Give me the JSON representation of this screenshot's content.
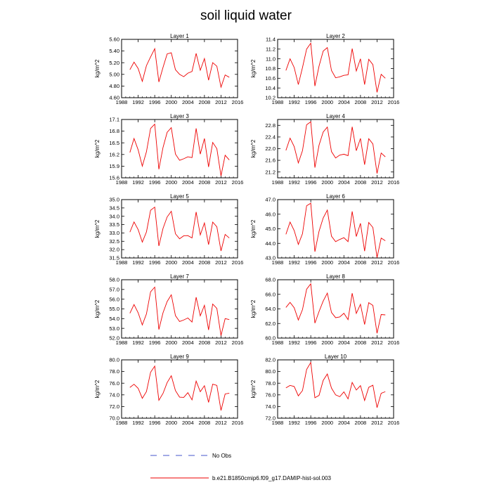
{
  "title": "soil liquid water",
  "legend": {
    "obs_label": "No Obs",
    "model_label": "b.e21.B1850cmip6.f09_g17.DAMIP-hist-sol.003",
    "model_color": "#ee0000",
    "obs_color": "#4455cc"
  },
  "chart_data": [
    {
      "type": "line",
      "title": "Layer 1",
      "ylabel": "kg/m^2",
      "xlim": [
        1988,
        2016
      ],
      "ylim": [
        4.6,
        5.6
      ],
      "xticks": [
        "1988",
        "1992",
        "1996",
        "2000",
        "2004",
        "2008",
        "2012",
        "2016"
      ],
      "yticks": [
        "4.60",
        "4.80",
        "5.00",
        "5.20",
        "5.40",
        "5.60"
      ],
      "x": [
        1990,
        1991,
        1992,
        1993,
        1994,
        1995,
        1996,
        1997,
        1998,
        1999,
        2000,
        2001,
        2002,
        2003,
        2004,
        2005,
        2006,
        2007,
        2008,
        2009,
        2010,
        2011,
        2012,
        2013,
        2014
      ],
      "series": [
        {
          "values": [
            5.08,
            5.21,
            5.1,
            4.88,
            5.15,
            5.3,
            5.44,
            4.87,
            5.12,
            5.35,
            5.37,
            5.08,
            5.0,
            4.96,
            5.02,
            5.05,
            5.36,
            5.07,
            5.27,
            4.9,
            5.2,
            5.14,
            4.78,
            4.99,
            4.95
          ]
        }
      ]
    },
    {
      "type": "line",
      "title": "Layer 2",
      "ylabel": "kg/m^2",
      "xlim": [
        1988,
        2016
      ],
      "ylim": [
        10.2,
        11.4
      ],
      "xticks": [
        "1988",
        "1992",
        "1996",
        "2000",
        "2004",
        "2008",
        "2012",
        "2016"
      ],
      "yticks": [
        "10.2",
        "10.4",
        "10.6",
        "10.8",
        "11.0",
        "11.2",
        "11.4"
      ],
      "x": [
        1990,
        1991,
        1992,
        1993,
        1994,
        1995,
        1996,
        1997,
        1998,
        1999,
        2000,
        2001,
        2002,
        2003,
        2004,
        2005,
        2006,
        2007,
        2008,
        2009,
        2010,
        2011,
        2012,
        2013,
        2014
      ],
      "series": [
        {
          "values": [
            10.76,
            11.0,
            10.82,
            10.47,
            10.82,
            11.2,
            11.32,
            10.44,
            10.85,
            11.16,
            11.23,
            10.76,
            10.61,
            10.63,
            10.66,
            10.67,
            11.21,
            10.75,
            11.0,
            10.47,
            10.99,
            10.88,
            10.31,
            10.68,
            10.6
          ]
        }
      ]
    },
    {
      "type": "line",
      "title": "Layer 3",
      "ylabel": "kg/m^2",
      "xlim": [
        1988,
        2016
      ],
      "ylim": [
        15.6,
        17.1
      ],
      "xticks": [
        "1988",
        "1992",
        "1996",
        "2000",
        "2004",
        "2008",
        "2012",
        "2016"
      ],
      "yticks": [
        "15.6",
        "15.9",
        "16.2",
        "16.5",
        "16.8",
        "17.1"
      ],
      "x": [
        1990,
        1991,
        1992,
        1993,
        1994,
        1995,
        1996,
        1997,
        1998,
        1999,
        2000,
        2001,
        2002,
        2003,
        2004,
        2005,
        2006,
        2007,
        2008,
        2009,
        2010,
        2011,
        2012,
        2013,
        2014
      ],
      "series": [
        {
          "values": [
            16.25,
            16.61,
            16.32,
            15.9,
            16.27,
            16.87,
            16.98,
            15.82,
            16.38,
            16.77,
            16.89,
            16.21,
            16.05,
            16.09,
            16.14,
            16.12,
            16.87,
            16.21,
            16.61,
            15.88,
            16.51,
            16.35,
            15.65,
            16.18,
            16.06
          ]
        }
      ]
    },
    {
      "type": "line",
      "title": "Layer 4",
      "ylabel": "kg/m^2",
      "xlim": [
        1988,
        2016
      ],
      "ylim": [
        21.0,
        23.0
      ],
      "xticks": [
        "1988",
        "1992",
        "1996",
        "2000",
        "2004",
        "2008",
        "2012",
        "2016"
      ],
      "yticks": [
        "21.2",
        "21.6",
        "22.0",
        "22.4",
        "22.8"
      ],
      "x": [
        1990,
        1991,
        1992,
        1993,
        1994,
        1995,
        1996,
        1997,
        1998,
        1999,
        2000,
        2001,
        2002,
        2003,
        2004,
        2005,
        2006,
        2007,
        2008,
        2009,
        2010,
        2011,
        2012,
        2013,
        2014
      ],
      "series": [
        {
          "values": [
            21.94,
            22.36,
            22.07,
            21.51,
            21.93,
            22.82,
            22.92,
            21.35,
            22.12,
            22.57,
            22.74,
            21.9,
            21.68,
            21.78,
            21.81,
            21.76,
            22.75,
            21.93,
            22.35,
            21.45,
            22.34,
            22.16,
            21.15,
            21.85,
            21.72
          ]
        }
      ]
    },
    {
      "type": "line",
      "title": "Layer 5",
      "ylabel": "kg/m^2",
      "xlim": [
        1988,
        2016
      ],
      "ylim": [
        31.5,
        35.0
      ],
      "xticks": [
        "1988",
        "1992",
        "1996",
        "2000",
        "2004",
        "2008",
        "2012",
        "2016"
      ],
      "yticks": [
        "31.5",
        "32.0",
        "32.5",
        "33.0",
        "33.5",
        "34.0",
        "34.5",
        "35.0"
      ],
      "x": [
        1990,
        1991,
        1992,
        1993,
        1994,
        1995,
        1996,
        1997,
        1998,
        1999,
        2000,
        2001,
        2002,
        2003,
        2004,
        2005,
        2006,
        2007,
        2008,
        2009,
        2010,
        2011,
        2012,
        2013,
        2014
      ],
      "series": [
        {
          "values": [
            33.05,
            33.66,
            33.2,
            32.45,
            33.06,
            34.36,
            34.55,
            32.22,
            33.27,
            33.96,
            34.3,
            32.95,
            32.65,
            32.83,
            32.84,
            32.7,
            34.26,
            32.88,
            33.6,
            32.3,
            33.65,
            33.37,
            31.92,
            32.91,
            32.7
          ]
        }
      ]
    },
    {
      "type": "line",
      "title": "Layer 6",
      "ylabel": "kg/m^2",
      "xlim": [
        1988,
        2016
      ],
      "ylim": [
        43.0,
        47.0
      ],
      "xticks": [
        "1988",
        "1992",
        "1996",
        "2000",
        "2004",
        "2008",
        "2012",
        "2016"
      ],
      "yticks": [
        "43.0",
        "44.0",
        "45.0",
        "46.0",
        "47.0"
      ],
      "x": [
        1990,
        1991,
        1992,
        1993,
        1994,
        1995,
        1996,
        1997,
        1998,
        1999,
        2000,
        2001,
        2002,
        2003,
        2004,
        2005,
        2006,
        2007,
        2008,
        2009,
        2010,
        2011,
        2012,
        2013,
        2014
      ],
      "series": [
        {
          "values": [
            44.62,
            45.46,
            44.88,
            43.93,
            44.66,
            46.58,
            46.75,
            43.43,
            44.83,
            45.74,
            46.28,
            44.49,
            44.12,
            44.27,
            44.39,
            44.12,
            46.19,
            44.47,
            45.37,
            43.47,
            45.43,
            45.09,
            43.02,
            44.36,
            44.18
          ]
        }
      ]
    },
    {
      "type": "line",
      "title": "Layer 7",
      "ylabel": "kg/m^2",
      "xlim": [
        1988,
        2016
      ],
      "ylim": [
        52.0,
        58.0
      ],
      "xticks": [
        "1988",
        "1992",
        "1996",
        "2000",
        "2004",
        "2008",
        "2012",
        "2016"
      ],
      "yticks": [
        "52.0",
        "53.0",
        "54.0",
        "55.0",
        "56.0",
        "57.0",
        "58.0"
      ],
      "x": [
        1990,
        1991,
        1992,
        1993,
        1994,
        1995,
        1996,
        1997,
        1998,
        1999,
        2000,
        2001,
        2002,
        2003,
        2004,
        2005,
        2006,
        2007,
        2008,
        2009,
        2010,
        2011,
        2012,
        2013,
        2014
      ],
      "series": [
        {
          "values": [
            54.55,
            55.45,
            54.6,
            53.35,
            54.48,
            56.76,
            57.24,
            52.88,
            54.6,
            55.76,
            56.45,
            54.31,
            53.7,
            53.86,
            54.07,
            53.65,
            56.2,
            54.29,
            55.37,
            52.84,
            55.5,
            55.05,
            52.26,
            54.0,
            53.9
          ]
        }
      ]
    },
    {
      "type": "line",
      "title": "Layer 8",
      "ylabel": "kg/m^2",
      "xlim": [
        1988,
        2016
      ],
      "ylim": [
        60.0,
        68.0
      ],
      "xticks": [
        "1988",
        "1992",
        "1996",
        "2000",
        "2004",
        "2008",
        "2012",
        "2016"
      ],
      "yticks": [
        "60.0",
        "62.0",
        "64.0",
        "66.0",
        "68.0"
      ],
      "x": [
        1990,
        1991,
        1992,
        1993,
        1994,
        1995,
        1996,
        1997,
        1998,
        1999,
        2000,
        2001,
        2002,
        2003,
        2004,
        2005,
        2006,
        2007,
        2008,
        2009,
        2010,
        2011,
        2012,
        2013,
        2014
      ],
      "series": [
        {
          "values": [
            64.2,
            64.89,
            64.16,
            62.48,
            63.9,
            66.7,
            67.44,
            62.05,
            63.64,
            65.08,
            66.16,
            63.51,
            62.8,
            62.9,
            63.4,
            62.53,
            66.15,
            63.38,
            64.63,
            61.86,
            64.85,
            64.48,
            60.66,
            63.23,
            63.18
          ]
        }
      ]
    },
    {
      "type": "line",
      "title": "Layer 9",
      "ylabel": "kg/m^2",
      "xlim": [
        1988,
        2016
      ],
      "ylim": [
        70.0,
        80.0
      ],
      "xticks": [
        "1988",
        "1992",
        "1996",
        "2000",
        "2004",
        "2008",
        "2012",
        "2016"
      ],
      "yticks": [
        "70.0",
        "72.0",
        "74.0",
        "76.0",
        "78.0",
        "80.0"
      ],
      "x": [
        1990,
        1991,
        1992,
        1993,
        1994,
        1995,
        1996,
        1997,
        1998,
        1999,
        2000,
        2001,
        2002,
        2003,
        2004,
        2005,
        2006,
        2007,
        2008,
        2009,
        2010,
        2011,
        2012,
        2013,
        2014
      ],
      "series": [
        {
          "values": [
            75.27,
            75.82,
            75.12,
            73.41,
            74.57,
            77.87,
            78.93,
            73.07,
            74.25,
            76.11,
            77.28,
            74.73,
            73.61,
            73.56,
            74.38,
            73.14,
            76.36,
            74.55,
            75.57,
            72.71,
            75.84,
            75.62,
            71.33,
            74.16,
            74.29
          ]
        }
      ]
    },
    {
      "type": "line",
      "title": "Layer 10",
      "ylabel": "kg/m^2",
      "xlim": [
        1988,
        2016
      ],
      "ylim": [
        72.0,
        82.0
      ],
      "xticks": [
        "1988",
        "1992",
        "1996",
        "2000",
        "2004",
        "2008",
        "2012",
        "2016"
      ],
      "yticks": [
        "72.0",
        "74.0",
        "76.0",
        "78.0",
        "80.0",
        "82.0"
      ],
      "x": [
        1990,
        1991,
        1992,
        1993,
        1994,
        1995,
        1996,
        1997,
        1998,
        1999,
        2000,
        2001,
        2002,
        2003,
        2004,
        2005,
        2006,
        2007,
        2008,
        2009,
        2010,
        2011,
        2012,
        2013,
        2014
      ],
      "series": [
        {
          "values": [
            77.2,
            77.62,
            77.43,
            75.83,
            76.73,
            80.36,
            81.55,
            75.5,
            75.91,
            78.48,
            79.58,
            77.16,
            76.0,
            75.69,
            76.51,
            75.32,
            78.13,
            76.83,
            77.58,
            75.04,
            77.29,
            77.65,
            73.81,
            76.27,
            76.55
          ]
        }
      ]
    }
  ]
}
